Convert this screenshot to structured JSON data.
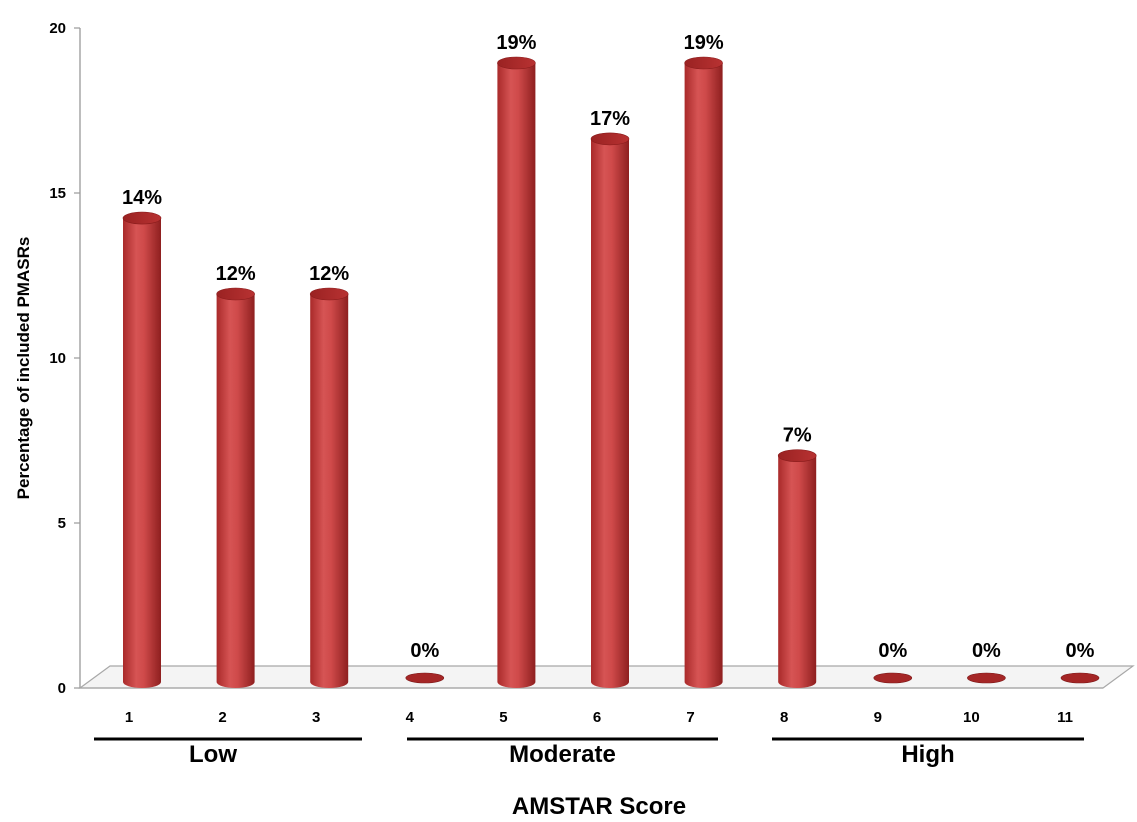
{
  "chart_data": {
    "type": "bar",
    "categories": [
      "1",
      "2",
      "3",
      "4",
      "5",
      "6",
      "7",
      "8",
      "9",
      "10",
      "11"
    ],
    "values": [
      14.3,
      12,
      12,
      0,
      19,
      16.7,
      19,
      7.1,
      0,
      0,
      0
    ],
    "data_labels": [
      "14%",
      "12%",
      "12%",
      "0%",
      "19%",
      "17%",
      "19%",
      "7%",
      "0%",
      "0%",
      "0%"
    ],
    "title": "",
    "xlabel": "AMSTAR Score",
    "ylabel": "Percentage of included PMASRs",
    "ylim": [
      0,
      20
    ],
    "yticks": [
      0,
      5,
      10,
      15,
      20
    ],
    "grid": false,
    "bar_color": "#c63b3b",
    "groups": [
      {
        "label": "Low",
        "from": "1",
        "to": "3"
      },
      {
        "label": "Moderate",
        "from": "4",
        "to": "7"
      },
      {
        "label": "High",
        "from": "8",
        "to": "11"
      }
    ]
  }
}
